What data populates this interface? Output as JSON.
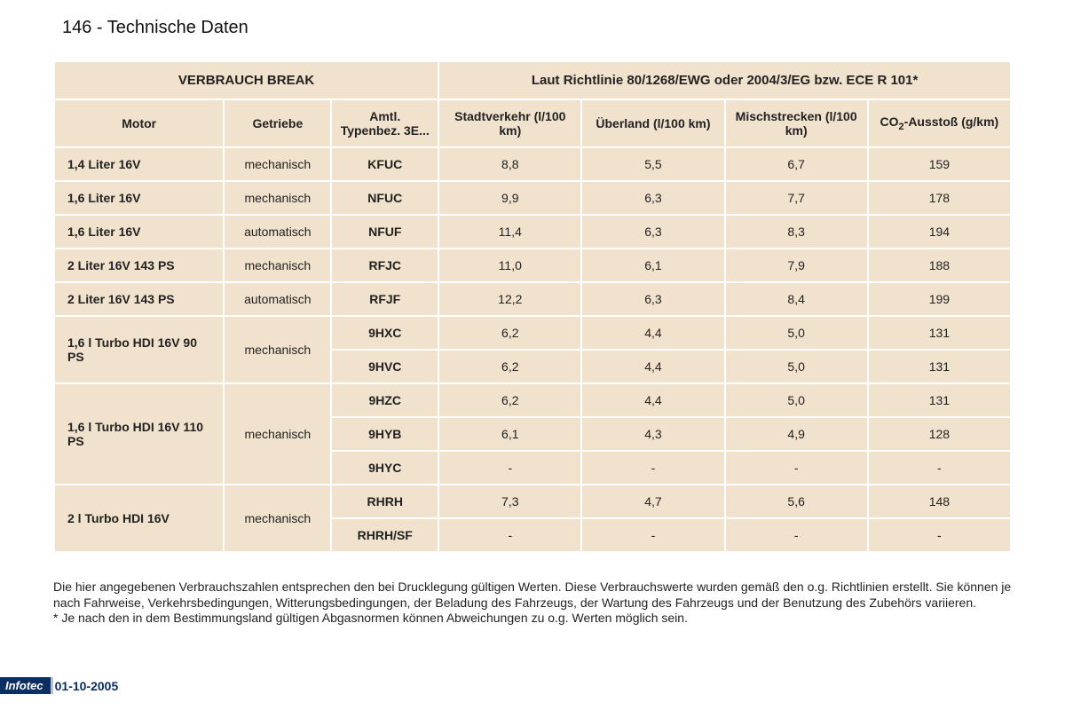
{
  "page": {
    "title": "146 - Technische Daten",
    "footer_logo": "Infotec",
    "footer_date": "01-10-2005"
  },
  "table": {
    "group_headers": {
      "left": "VERBRAUCH BREAK",
      "right": "Laut Richtlinie 80/1268/EWG oder 2004/3/EG bzw. ECE R 101*"
    },
    "columns": {
      "motor": "Motor",
      "getriebe": "Getriebe",
      "typ": "Amtl. Typenbez. 3E...",
      "stadt": "Stadtverkehr (l/100 km)",
      "ueberland": "Überland (l/100 km)",
      "misch": "Mischstrecken (l/100 km)",
      "co2_prefix": "CO",
      "co2_sub": "2",
      "co2_suffix": "-Ausstoß (g/km)"
    },
    "rows": [
      {
        "motor": "1,4 Liter 16V",
        "getriebe": "mechanisch",
        "typ": "KFUC",
        "stadt": "8,8",
        "ueberland": "5,5",
        "misch": "6,7",
        "co2": "159"
      },
      {
        "motor": "1,6 Liter 16V",
        "getriebe": "mechanisch",
        "typ": "NFUC",
        "stadt": "9,9",
        "ueberland": "6,3",
        "misch": "7,7",
        "co2": "178"
      },
      {
        "motor": "1,6 Liter 16V",
        "getriebe": "automatisch",
        "typ": "NFUF",
        "stadt": "11,4",
        "ueberland": "6,3",
        "misch": "8,3",
        "co2": "194"
      },
      {
        "motor": "2 Liter 16V 143 PS",
        "getriebe": "mechanisch",
        "typ": "RFJC",
        "stadt": "11,0",
        "ueberland": "6,1",
        "misch": "7,9",
        "co2": "188"
      },
      {
        "motor": "2 Liter 16V 143 PS",
        "getriebe": "automatisch",
        "typ": "RFJF",
        "stadt": "12,2",
        "ueberland": "6,3",
        "misch": "8,4",
        "co2": "199"
      }
    ],
    "grouped": [
      {
        "motor": "1,6 l Turbo HDI 16V 90 PS",
        "getriebe": "mechanisch",
        "sub": [
          {
            "typ": "9HXC",
            "stadt": "6,2",
            "ueberland": "4,4",
            "misch": "5,0",
            "co2": "131"
          },
          {
            "typ": "9HVC",
            "stadt": "6,2",
            "ueberland": "4,4",
            "misch": "5,0",
            "co2": "131"
          }
        ]
      },
      {
        "motor": "1,6 l Turbo HDI 16V 110 PS",
        "getriebe": "mechanisch",
        "sub": [
          {
            "typ": "9HZC",
            "stadt": "6,2",
            "ueberland": "4,4",
            "misch": "5,0",
            "co2": "131"
          },
          {
            "typ": "9HYB",
            "stadt": "6,1",
            "ueberland": "4,3",
            "misch": "4,9",
            "co2": "128"
          },
          {
            "typ": "9HYC",
            "stadt": "-",
            "ueberland": "-",
            "misch": "-",
            "co2": "-"
          }
        ]
      },
      {
        "motor": "2 l Turbo HDI 16V",
        "getriebe": "mechanisch",
        "sub": [
          {
            "typ": "RHRH",
            "stadt": "7,3",
            "ueberland": "4,7",
            "misch": "5,6",
            "co2": "148"
          },
          {
            "typ": "RHRH/SF",
            "stadt": "-",
            "ueberland": "-",
            "misch": "-",
            "co2": "-"
          }
        ]
      }
    ]
  },
  "footnotes": {
    "p1": "Die hier angegebenen Verbrauchszahlen entsprechen den bei Drucklegung gültigen Werten. Diese Verbrauchswerte wurden gemäß den o.g. Richtlinien erstellt. Sie können je nach Fahrweise, Verkehrsbedingungen, Witterungsbedingungen, der Beladung des Fahrzeugs, der Wartung des Fahrzeugs und der Benutzung des Zubehörs variieren.",
    "p2": "*  Je nach den in dem Bestimmungsland gültigen Abgasnormen können Abweichungen zu o.g. Werten möglich sein."
  }
}
